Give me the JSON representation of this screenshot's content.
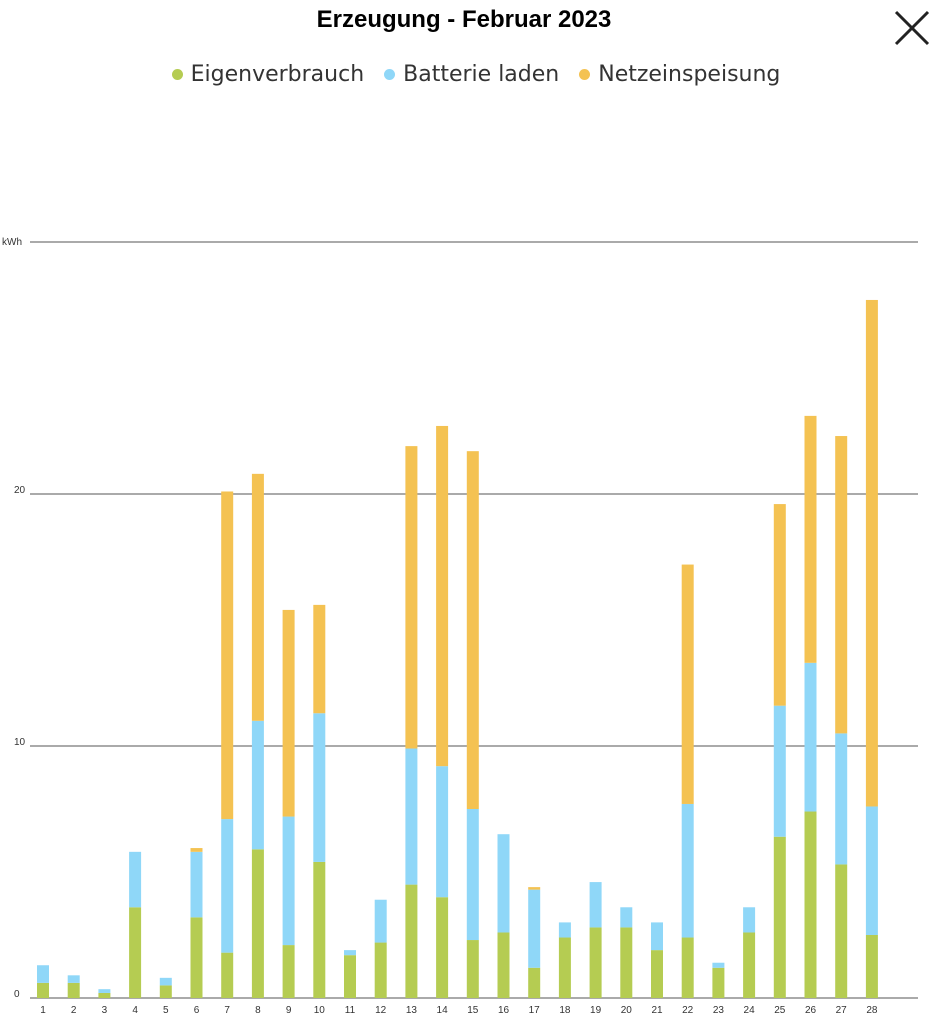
{
  "header": {
    "title": "Erzeugung - Februar 2023",
    "close_icon": "close-icon"
  },
  "colors": {
    "eigenverbrauch": "#b5cc52",
    "batterie": "#8fd7f8",
    "netz": "#f4c252",
    "grid": "#555555"
  },
  "chart_data": {
    "type": "bar",
    "stacked": true,
    "title": "Erzeugung - Februar 2023",
    "ylabel": "kWh",
    "xlabel": "",
    "ylim": [
      0,
      30
    ],
    "yticks": [
      0,
      10,
      20
    ],
    "grid": true,
    "legend_position": "top",
    "categories": [
      "1",
      "2",
      "3",
      "4",
      "5",
      "6",
      "7",
      "8",
      "9",
      "10",
      "11",
      "12",
      "13",
      "14",
      "15",
      "16",
      "17",
      "18",
      "19",
      "20",
      "21",
      "22",
      "23",
      "24",
      "25",
      "26",
      "27",
      "28"
    ],
    "series": [
      {
        "name": "Eigenverbrauch",
        "color": "#b5cc52",
        "values": [
          0.6,
          0.6,
          0.2,
          3.6,
          0.5,
          3.2,
          1.8,
          5.9,
          2.1,
          5.4,
          1.7,
          2.2,
          4.5,
          4.0,
          2.3,
          2.6,
          1.2,
          2.4,
          2.8,
          2.8,
          1.9,
          2.4,
          1.2,
          2.6,
          6.4,
          7.4,
          5.3,
          2.5
        ]
      },
      {
        "name": "Batterie laden",
        "color": "#8fd7f8",
        "values": [
          0.7,
          0.3,
          0.15,
          2.2,
          0.3,
          2.6,
          5.3,
          5.1,
          5.1,
          5.9,
          0.2,
          1.7,
          5.4,
          5.2,
          5.2,
          3.9,
          3.1,
          0.6,
          1.8,
          0.8,
          1.1,
          5.3,
          0.2,
          1.0,
          5.2,
          5.9,
          5.2,
          5.1
        ]
      },
      {
        "name": "Netzeinspeisung",
        "color": "#f4c252",
        "values": [
          0,
          0,
          0,
          0,
          0,
          0.15,
          13.0,
          9.8,
          8.2,
          4.3,
          0,
          0,
          12.0,
          13.5,
          14.2,
          0,
          0.1,
          0,
          0,
          0,
          0,
          9.5,
          0,
          0,
          8.0,
          9.8,
          11.8,
          20.1
        ]
      }
    ]
  }
}
